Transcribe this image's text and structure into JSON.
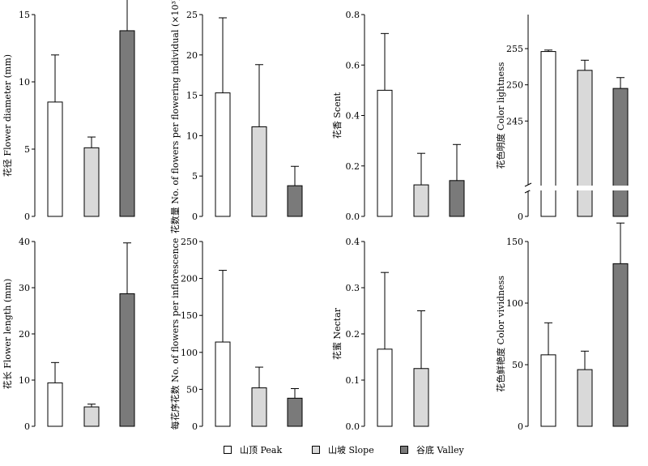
{
  "chart_data": [
    {
      "type": "bar",
      "ylabel": "花径 Flower diameter (mm)",
      "ylim": [
        0,
        15
      ],
      "ticks": [
        0,
        5,
        10,
        15
      ],
      "categories": [
        "山顶 Peak",
        "山坡 Slope",
        "谷底 Valley"
      ],
      "values": [
        8.5,
        5.1,
        13.8
      ],
      "errors": [
        3.5,
        0.8,
        2.4
      ]
    },
    {
      "type": "bar",
      "ylabel": "花数量 No. of flowers per flowering individual (×10³)",
      "ylim": [
        0,
        25
      ],
      "ticks": [
        0,
        5,
        10,
        15,
        20,
        25
      ],
      "categories": [
        "山顶 Peak",
        "山坡 Slope",
        "谷底 Valley"
      ],
      "values": [
        15.3,
        11.1,
        3.8
      ],
      "errors": [
        9.3,
        7.7,
        2.4
      ]
    },
    {
      "type": "bar",
      "ylabel": "花香 Scent",
      "ylim": [
        0,
        0.8
      ],
      "ticks": [
        0.0,
        0.2,
        0.4,
        0.6,
        0.8
      ],
      "categories": [
        "山顶 Peak",
        "山坡 Slope",
        "谷底 Valley"
      ],
      "values": [
        0.5,
        0.125,
        0.142
      ],
      "errors": [
        0.225,
        0.125,
        0.143
      ]
    },
    {
      "type": "bar",
      "ylabel": "花色明度 Color lightness",
      "ylim": [
        240,
        255
      ],
      "axis_break": true,
      "ticks": [
        0,
        245,
        250,
        255
      ],
      "categories": [
        "山顶 Peak",
        "山坡 Slope",
        "谷底 Valley"
      ],
      "values": [
        254.6,
        252.0,
        249.5
      ],
      "errors": [
        0.2,
        1.4,
        1.5
      ]
    },
    {
      "type": "bar",
      "ylabel": "花长 Flower length (mm)",
      "ylim": [
        0,
        40
      ],
      "ticks": [
        0,
        10,
        20,
        30,
        40
      ],
      "categories": [
        "山顶 Peak",
        "山坡 Slope",
        "谷底 Valley"
      ],
      "values": [
        9.4,
        4.2,
        28.7
      ],
      "errors": [
        4.4,
        0.6,
        11.0
      ]
    },
    {
      "type": "bar",
      "ylabel": "每花序花数 No. of flowers per inflorescence",
      "ylim": [
        0,
        250
      ],
      "ticks": [
        0,
        50,
        100,
        150,
        200,
        250
      ],
      "categories": [
        "山顶 Peak",
        "山坡 Slope",
        "谷底 Valley"
      ],
      "values": [
        114,
        52,
        38
      ],
      "errors": [
        97,
        28,
        13
      ]
    },
    {
      "type": "bar",
      "ylabel": "花蜜 Nectar",
      "ylim": [
        0,
        0.4
      ],
      "ticks": [
        0.0,
        0.1,
        0.2,
        0.3,
        0.4
      ],
      "categories": [
        "山顶 Peak",
        "山坡 Slope",
        "谷底 Valley"
      ],
      "values": [
        0.167,
        0.125,
        0
      ],
      "errors": [
        0.166,
        0.125,
        0
      ]
    },
    {
      "type": "bar",
      "ylabel": "花色鲜艳度 Color vividness",
      "ylim": [
        0,
        150
      ],
      "ticks": [
        0,
        50,
        100,
        150
      ],
      "categories": [
        "山顶 Peak",
        "山坡 Slope",
        "谷底 Valley"
      ],
      "values": [
        58,
        46,
        132
      ],
      "errors": [
        26,
        15,
        33
      ]
    }
  ],
  "legend": [
    {
      "label": "山顶 Peak",
      "color": "#ffffff"
    },
    {
      "label": "山坡 Slope",
      "color": "#d9d9d9"
    },
    {
      "label": "谷底 Valley",
      "color": "#7a7a7a"
    }
  ]
}
